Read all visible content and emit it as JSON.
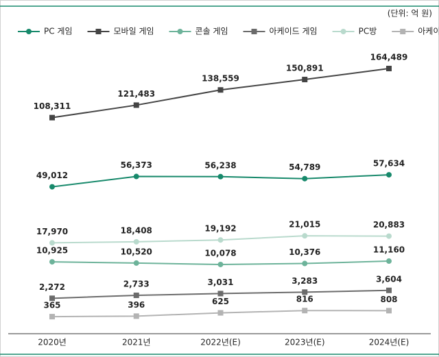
{
  "chart_data": {
    "type": "line",
    "unit_note": "(단위: 억 원)",
    "categories": [
      "2020년",
      "2021년",
      "2022년(E)",
      "2023년(E)",
      "2024년(E)"
    ],
    "series": [
      {
        "name": "PC 게임",
        "color": "#17896b",
        "marker": "circle",
        "values": [
          49012,
          56373,
          56238,
          54789,
          57634
        ],
        "value_labels": [
          "49,012",
          "56,373",
          "56,238",
          "54,789",
          "57,634"
        ]
      },
      {
        "name": "모바일 게임",
        "color": "#444444",
        "marker": "square",
        "values": [
          108311,
          121483,
          138559,
          150891,
          164489
        ],
        "value_labels": [
          "108,311",
          "121,483",
          "138,559",
          "150,891",
          "164,489"
        ]
      },
      {
        "name": "콘솔 게임",
        "color": "#6db39a",
        "marker": "circle",
        "values": [
          10925,
          10520,
          10078,
          10376,
          11160
        ],
        "value_labels": [
          "10,925",
          "10,520",
          "10,078",
          "10,376",
          "11,160"
        ]
      },
      {
        "name": "아케이드 게임",
        "color": "#6b6b6b",
        "marker": "square",
        "values": [
          2272,
          2733,
          3031,
          3283,
          3604
        ],
        "value_labels": [
          "2,272",
          "2,733",
          "3,031",
          "3,283",
          "3,604"
        ]
      },
      {
        "name": "PC방",
        "color": "#b9dacd",
        "marker": "circle",
        "values": [
          17970,
          18408,
          19192,
          21015,
          20883
        ],
        "value_labels": [
          "17,970",
          "18,408",
          "19,192",
          "21,015",
          "20,883"
        ]
      },
      {
        "name": "아케이드 게임장",
        "color": "#b3b3b3",
        "marker": "square",
        "values": [
          365,
          396,
          625,
          816,
          808
        ],
        "value_labels": [
          "365",
          "396",
          "625",
          "816",
          "808"
        ]
      }
    ]
  }
}
